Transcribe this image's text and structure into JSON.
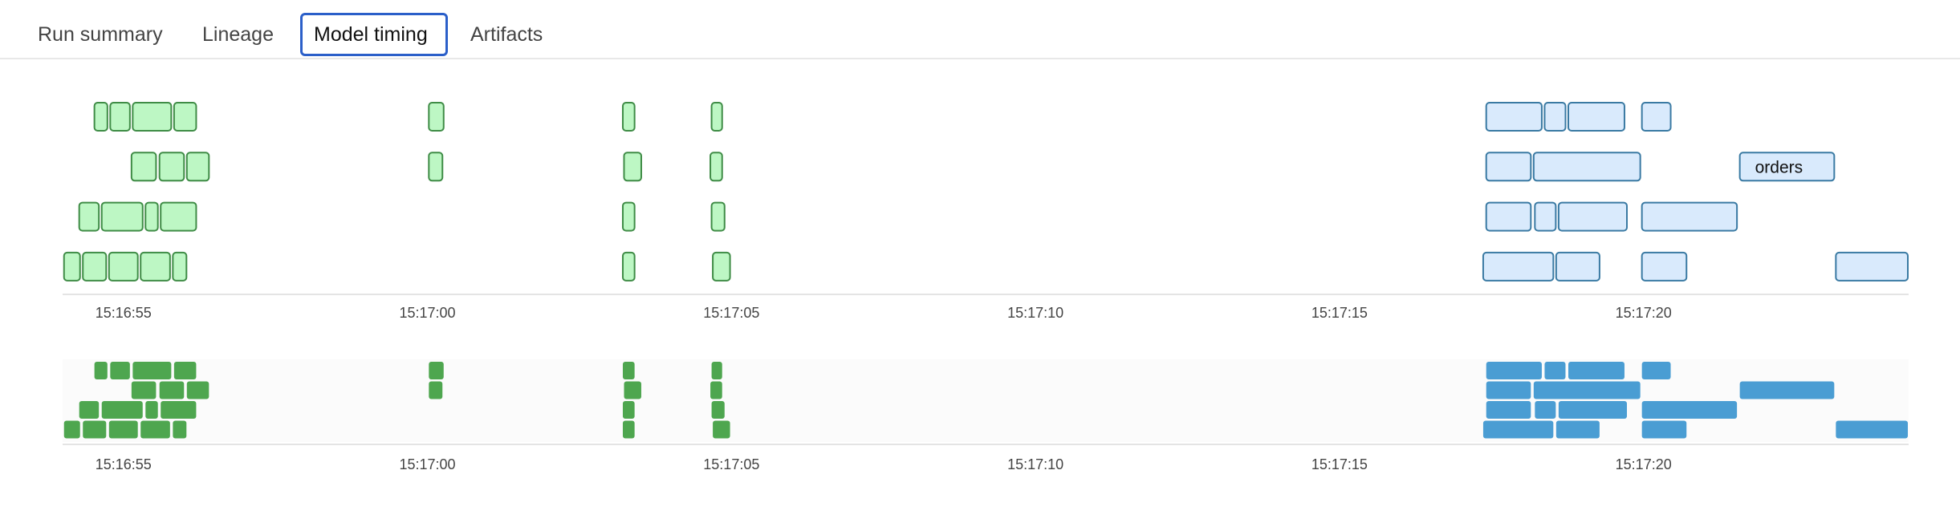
{
  "tabs": [
    {
      "label": "Run summary",
      "active": false
    },
    {
      "label": "Lineage",
      "active": false
    },
    {
      "label": "Model timing",
      "active": true
    },
    {
      "label": "Artifacts",
      "active": false
    }
  ],
  "chart_data": {
    "type": "timeline",
    "x_range": [
      "15:16:54.00",
      "15:17:24.36"
    ],
    "ticks": [
      "15:16:55",
      "15:17:00",
      "15:17:05",
      "15:17:10",
      "15:17:15",
      "15:17:20"
    ],
    "colors": {
      "green_fill": "#bdf7c4",
      "green_stroke": "#3f8c46",
      "green_mini": "#4ea64f",
      "blue_fill": "#d9eafc",
      "blue_stroke": "#3a7aa3",
      "blue_mini": "#4a9dd3",
      "overview_bg": "#fbfbfb",
      "axis": "#e4e4e4"
    },
    "rows": [
      [
        {
          "start": "15:16:54.51",
          "end": "15:16:54.75",
          "color": "green"
        },
        {
          "start": "15:16:54.77",
          "end": "15:16:55.12",
          "color": "green"
        },
        {
          "start": "15:16:55.14",
          "end": "15:16:55.80",
          "color": "green"
        },
        {
          "start": "15:16:55.82",
          "end": "15:16:56.21",
          "color": "green"
        },
        {
          "start": "15:17:00.01",
          "end": "15:17:00.28",
          "color": "green"
        },
        {
          "start": "15:17:03.20",
          "end": "15:17:03.42",
          "color": "green"
        },
        {
          "start": "15:17:04.66",
          "end": "15:17:04.86",
          "color": "green"
        },
        {
          "start": "15:17:17.40",
          "end": "15:17:18.34",
          "color": "blue"
        },
        {
          "start": "15:17:18.36",
          "end": "15:17:18.73",
          "color": "blue"
        },
        {
          "start": "15:17:18.75",
          "end": "15:17:19.70",
          "color": "blue"
        },
        {
          "start": "15:17:19.96",
          "end": "15:17:20.46",
          "color": "blue"
        }
      ],
      [
        {
          "start": "15:16:55.12",
          "end": "15:16:55.55",
          "color": "green"
        },
        {
          "start": "15:16:55.58",
          "end": "15:16:56.01",
          "color": "green"
        },
        {
          "start": "15:16:56.03",
          "end": "15:16:56.42",
          "color": "green"
        },
        {
          "start": "15:17:00.01",
          "end": "15:17:00.26",
          "color": "green"
        },
        {
          "start": "15:17:03.22",
          "end": "15:17:03.53",
          "color": "green"
        },
        {
          "start": "15:17:04.64",
          "end": "15:17:04.86",
          "color": "green"
        },
        {
          "start": "15:17:17.40",
          "end": "15:17:18.16",
          "color": "blue"
        },
        {
          "start": "15:17:18.18",
          "end": "15:17:19.96",
          "color": "blue"
        },
        {
          "start": "15:17:21.57",
          "end": "15:17:23.15",
          "color": "blue",
          "label": "orders"
        }
      ],
      [
        {
          "start": "15:16:54.26",
          "end": "15:16:54.61",
          "color": "green"
        },
        {
          "start": "15:16:54.63",
          "end": "15:16:55.33",
          "color": "green"
        },
        {
          "start": "15:16:55.35",
          "end": "15:16:55.58",
          "color": "green"
        },
        {
          "start": "15:16:55.60",
          "end": "15:16:56.21",
          "color": "green"
        },
        {
          "start": "15:17:03.20",
          "end": "15:17:03.42",
          "color": "green"
        },
        {
          "start": "15:17:04.66",
          "end": "15:17:04.90",
          "color": "green"
        },
        {
          "start": "15:17:17.40",
          "end": "15:17:18.16",
          "color": "blue"
        },
        {
          "start": "15:17:18.20",
          "end": "15:17:18.57",
          "color": "blue"
        },
        {
          "start": "15:17:18.59",
          "end": "15:17:19.74",
          "color": "blue"
        },
        {
          "start": "15:17:19.96",
          "end": "15:17:21.55",
          "color": "blue"
        }
      ],
      [
        {
          "start": "15:16:54.01",
          "end": "15:16:54.30",
          "color": "green"
        },
        {
          "start": "15:16:54.32",
          "end": "15:16:54.73",
          "color": "green"
        },
        {
          "start": "15:16:54.75",
          "end": "15:16:55.25",
          "color": "green"
        },
        {
          "start": "15:16:55.27",
          "end": "15:16:55.78",
          "color": "green"
        },
        {
          "start": "15:16:55.80",
          "end": "15:16:56.05",
          "color": "green"
        },
        {
          "start": "15:17:03.20",
          "end": "15:17:03.42",
          "color": "green"
        },
        {
          "start": "15:17:04.68",
          "end": "15:17:04.99",
          "color": "green"
        },
        {
          "start": "15:17:17.35",
          "end": "15:17:18.53",
          "color": "blue"
        },
        {
          "start": "15:17:18.55",
          "end": "15:17:19.29",
          "color": "blue"
        },
        {
          "start": "15:17:19.96",
          "end": "15:17:20.72",
          "color": "blue"
        },
        {
          "start": "15:17:23.15",
          "end": "15:17:24.36",
          "color": "blue"
        }
      ]
    ]
  }
}
